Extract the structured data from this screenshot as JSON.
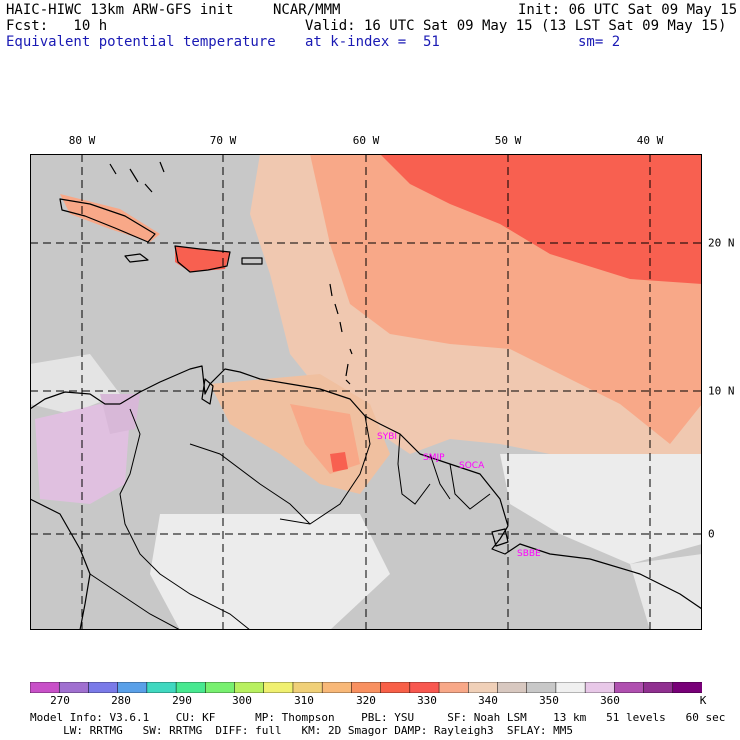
{
  "header": {
    "line1_left": "HAIC-HIWC 13km ARW-GFS init",
    "line1_mid": "NCAR/MMM",
    "line1_right": "Init: 06 UTC Sat 09 May 15",
    "line2_left": "Fcst:   10 h",
    "line2_right": "Valid: 16 UTC Sat 09 May 15 (13 LST Sat 09 May 15)",
    "line3_left": "Equivalent potential temperature",
    "line3_mid": "at k-index =  51",
    "line3_right": "sm= 2"
  },
  "axes": {
    "lon_labels": [
      "80 W",
      "70 W",
      "60 W",
      "50 W",
      "40 W"
    ],
    "lat_labels": [
      "20 N",
      "10 N",
      "0"
    ]
  },
  "cities": [
    "SYBI",
    "SMJP",
    "SOCA",
    "SBBE"
  ],
  "colorbar": {
    "labels": [
      "270",
      "280",
      "290",
      "300",
      "310",
      "320",
      "330",
      "340",
      "350",
      "360"
    ],
    "unit": "K",
    "colors": [
      "#c850c8",
      "#a070d0",
      "#7a7ae8",
      "#5aa0e8",
      "#40d8c0",
      "#48e890",
      "#78f070",
      "#b8f060",
      "#f0f070",
      "#f0d078",
      "#f8b878",
      "#f89060",
      "#f86048",
      "#f85850",
      "#f8a888",
      "#f0d0b8",
      "#d8c8c0",
      "#c8c8c8",
      "#f0f0f0",
      "#e8c8e8",
      "#b050b0",
      "#903090",
      "#780078"
    ]
  },
  "info": {
    "line1": "Model Info: V3.6.1    CU: KF      MP: Thompson    PBL: YSU     SF: Noah LSM    13 km   51 levels   60 sec",
    "line2": "     LW: RRTMG   SW: RRTMG  DIFF: full   KM: 2D Smagor DAMP: Rayleigh3  SFLAY: MM5"
  }
}
